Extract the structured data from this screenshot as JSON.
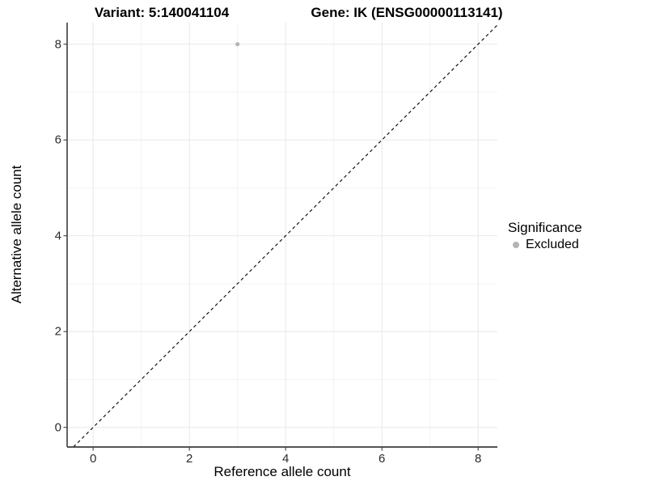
{
  "chart_data": {
    "type": "scatter",
    "title_left": "Variant: 5:140041104",
    "title_right": "Gene: IK (ENSG00000113141)",
    "xlabel": "Reference allele count",
    "ylabel": "Alternative allele count",
    "xlim": [
      -0.54,
      8.4
    ],
    "ylim": [
      -0.41,
      8.45
    ],
    "x_major_ticks": [
      0,
      2,
      4,
      6,
      8
    ],
    "y_major_ticks": [
      0,
      2,
      4,
      6,
      8
    ],
    "x_minor_ticks": [
      1,
      3,
      5,
      7
    ],
    "y_minor_ticks": [
      1,
      3,
      5,
      7
    ],
    "grid": "major and minor, light grey on white panel",
    "series": [
      {
        "name": "Excluded",
        "color": "#b3b3b3",
        "points": [
          {
            "x": 3,
            "y": 8
          }
        ]
      }
    ],
    "reference_line": {
      "kind": "identity y = x",
      "style": "dashed",
      "color": "#000000"
    },
    "legend": {
      "title": "Significance",
      "position": "right",
      "items": [
        {
          "label": "Excluded",
          "color": "#b3b3b3"
        }
      ]
    },
    "colors": {
      "grid_major": "#e8e8e8",
      "grid_minor": "#f3f3f3",
      "axis_line": "#3d3d3d",
      "tick_mark": "#3d3d3d",
      "point": "#b3b3b3"
    }
  }
}
